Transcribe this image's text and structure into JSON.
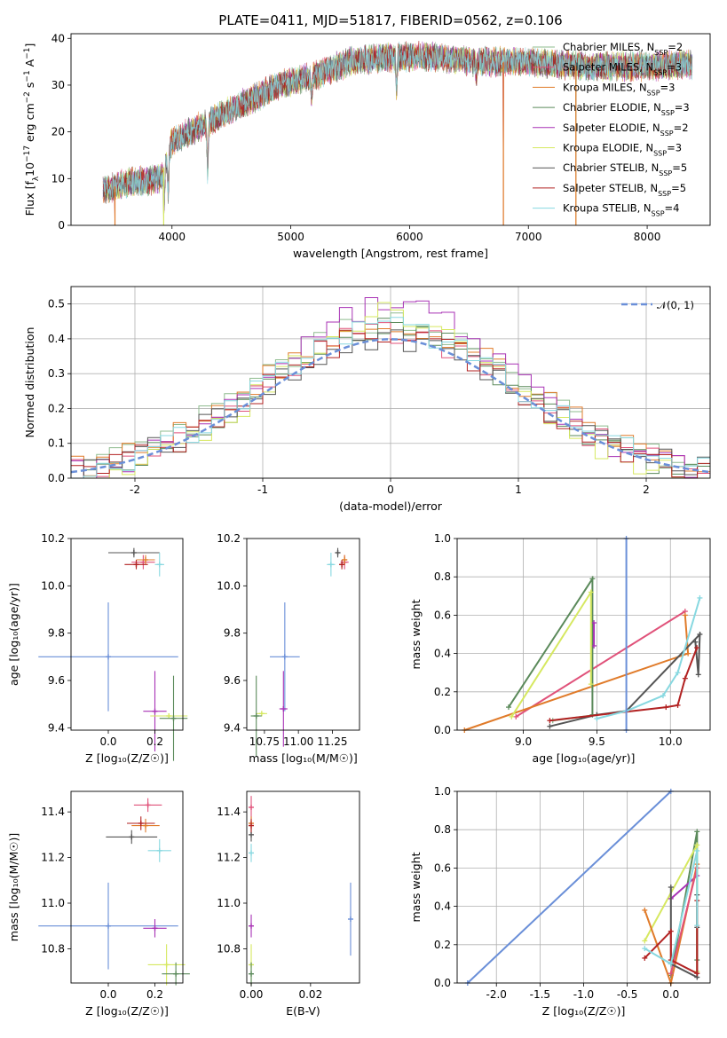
{
  "figure": {
    "title": "PLATE=0411, MJD=51817, FIBERID=0562, z=0.106"
  },
  "legend_spectrum": [
    {
      "label": "Chabrier MILES, N",
      "sub": "SSP",
      "suffix": "=2",
      "color": "#8fbc8f"
    },
    {
      "label": "Salpeter MILES, N",
      "sub": "SSP",
      "suffix": "=3",
      "color": "#e0527a"
    },
    {
      "label": "Kroupa MILES, N",
      "sub": "SSP",
      "suffix": "=3",
      "color": "#e07b2a"
    },
    {
      "label": "Chabrier ELODIE, N",
      "sub": "SSP",
      "suffix": "=3",
      "color": "#5b8a5b"
    },
    {
      "label": "Salpeter ELODIE, N",
      "sub": "SSP",
      "suffix": "=2",
      "color": "#a832b5"
    },
    {
      "label": "Kroupa ELODIE, N",
      "sub": "SSP",
      "suffix": "=3",
      "color": "#d6e860"
    },
    {
      "label": "Chabrier STELIB, N",
      "sub": "SSP",
      "suffix": "=5",
      "color": "#555555"
    },
    {
      "label": "Salpeter STELIB, N",
      "sub": "SSP",
      "suffix": "=5",
      "color": "#b22222"
    },
    {
      "label": "Kroupa STELIB, N",
      "sub": "SSP",
      "suffix": "=4",
      "color": "#87d8e0"
    }
  ],
  "chart_data": [
    {
      "type": "line",
      "id": "spectrum",
      "xlabel": "wavelength [Angstrom, rest frame]",
      "ylabel_parts": [
        "Flux [f",
        "λ",
        "10",
        "−17",
        " erg cm",
        "−2",
        " s",
        "−1",
        " A",
        "−1",
        "]"
      ],
      "xlim": [
        3150,
        8530
      ],
      "ylim": [
        0,
        41
      ],
      "xticks": [
        4000,
        5000,
        6000,
        7000,
        8000
      ],
      "yticks": [
        0,
        10,
        20,
        30,
        40
      ],
      "data_range": [
        3420,
        8380
      ],
      "continuum_points": [
        [
          3420,
          7.5
        ],
        [
          3600,
          9
        ],
        [
          3900,
          10
        ],
        [
          4000,
          18
        ],
        [
          4300,
          22
        ],
        [
          4600,
          26
        ],
        [
          4900,
          30
        ],
        [
          5200,
          32
        ],
        [
          5500,
          35
        ],
        [
          5800,
          36
        ],
        [
          6200,
          36
        ],
        [
          6600,
          35
        ],
        [
          7000,
          35
        ],
        [
          7500,
          34
        ],
        [
          8000,
          34
        ],
        [
          8380,
          34.5
        ]
      ],
      "absorption_dips": [
        [
          3934,
          8
        ],
        [
          3968,
          8
        ],
        [
          4300,
          10
        ],
        [
          5175,
          4
        ],
        [
          5890,
          6
        ],
        [
          6563,
          3
        ]
      ],
      "dropouts": [
        [
          3520,
          0
        ],
        [
          3930,
          0
        ],
        [
          6790,
          0
        ],
        [
          7400,
          0
        ]
      ]
    },
    {
      "type": "line",
      "id": "residuals",
      "xlabel": "(data-model)/error",
      "ylabel": "Normed distribution",
      "xlim": [
        -2.5,
        2.5
      ],
      "ylim": [
        0,
        0.55
      ],
      "xticks": [
        -2,
        -1,
        0,
        1,
        2
      ],
      "yticks": [
        0.0,
        0.1,
        0.2,
        0.3,
        0.4,
        0.5
      ],
      "legend": "𝒩(0, 1)",
      "legend_color": "#6a8fd8",
      "bin_width": 0.1,
      "series_peaks": [
        0.45,
        0.42,
        0.44,
        0.43,
        0.5,
        0.47,
        0.4,
        0.42,
        0.43
      ],
      "series_widths": [
        1.05,
        1.0,
        1.05,
        0.98,
        0.95,
        0.9,
        1.05,
        1.0,
        1.02
      ]
    },
    {
      "type": "scatter",
      "id": "age_vs_Z",
      "xlabel": "Z [log₁₀(Z/Z☉)]",
      "ylabel": "age  [log₁₀(age/yr)]",
      "xlim": [
        -0.16,
        0.32
      ],
      "ylim": [
        9.39,
        10.2
      ],
      "xticks": [
        0.0,
        0.2
      ],
      "yticks": [
        9.4,
        9.6,
        9.8,
        10.0,
        10.2
      ],
      "points": [
        {
          "x": 0.0,
          "y": 9.7,
          "ex": 0.3,
          "ey": 0.23,
          "color": "#6a8fd8"
        },
        {
          "x": 0.2,
          "y": 9.47,
          "ex": 0.05,
          "ey": 0.17,
          "color": "#a832b5"
        },
        {
          "x": 0.26,
          "y": 9.45,
          "ex": 0.08,
          "ey": 0.0,
          "color": "#d6e860"
        },
        {
          "x": 0.28,
          "y": 9.44,
          "ex": 0.06,
          "ey": 0.18,
          "color": "#5b8a5b"
        },
        {
          "x": 0.11,
          "y": 10.14,
          "ex": 0.11,
          "ey": 0.02,
          "color": "#555555"
        },
        {
          "x": 0.15,
          "y": 10.1,
          "ex": 0.05,
          "ey": 0.03,
          "color": "#e0527a"
        },
        {
          "x": 0.16,
          "y": 10.11,
          "ex": 0.04,
          "ey": 0.02,
          "color": "#e07b2a"
        },
        {
          "x": 0.12,
          "y": 10.09,
          "ex": 0.05,
          "ey": 0.02,
          "color": "#b22222"
        },
        {
          "x": 0.22,
          "y": 10.09,
          "ex": 0.02,
          "ey": 0.05,
          "color": "#87d8e0"
        }
      ]
    },
    {
      "type": "scatter",
      "id": "age_vs_mass",
      "xlabel": "mass [log₁₀(M/M☉)]",
      "ylabel": "",
      "xlim": [
        10.62,
        11.45
      ],
      "ylim": [
        9.39,
        10.2
      ],
      "xticks": [
        10.75,
        11.0,
        11.25
      ],
      "xtick_labels": [
        "10.75",
        "11.00",
        "11.25"
      ],
      "yticks": [
        9.4,
        9.6,
        9.8,
        10.0,
        10.2
      ],
      "points": [
        {
          "x": 10.9,
          "y": 9.7,
          "ex": 0.11,
          "ey": 0.23,
          "color": "#6a8fd8"
        },
        {
          "x": 10.89,
          "y": 9.48,
          "ex": 0.03,
          "ey": 0.16,
          "color": "#a832b5"
        },
        {
          "x": 10.73,
          "y": 9.46,
          "ex": 0.04,
          "ey": 0.0,
          "color": "#d6e860"
        },
        {
          "x": 10.69,
          "y": 9.45,
          "ex": 0.04,
          "ey": 0.17,
          "color": "#5b8a5b"
        },
        {
          "x": 11.29,
          "y": 10.14,
          "ex": 0.02,
          "ey": 0.02,
          "color": "#555555"
        },
        {
          "x": 11.34,
          "y": 10.1,
          "ex": 0.03,
          "ey": 0.03,
          "color": "#e0527a"
        },
        {
          "x": 11.34,
          "y": 10.11,
          "ex": 0.02,
          "ey": 0.02,
          "color": "#e07b2a"
        },
        {
          "x": 11.32,
          "y": 10.09,
          "ex": 0.02,
          "ey": 0.02,
          "color": "#b22222"
        },
        {
          "x": 11.24,
          "y": 10.09,
          "ex": 0.03,
          "ey": 0.05,
          "color": "#87d8e0"
        }
      ]
    },
    {
      "type": "line",
      "id": "mass_weight_vs_age",
      "xlabel": "age  [log₁₀(age/yr)]",
      "ylabel": "mass weight",
      "xlim": [
        8.55,
        10.27
      ],
      "ylim": [
        0,
        1.0
      ],
      "xticks": [
        9.0,
        9.5,
        10.0
      ],
      "yticks": [
        0.0,
        0.2,
        0.4,
        0.6,
        0.8,
        1.0
      ],
      "series": [
        {
          "name": "Chabrier MILES",
          "color": "#8fbc8f",
          "x": [
            9.2,
            9.5
          ],
          "y": [
            0.05,
            0.08
          ]
        },
        {
          "name": "Salpeter MILES",
          "color": "#e0527a",
          "x": [
            8.95,
            10.1
          ],
          "y": [
            0.07,
            0.62
          ]
        },
        {
          "name": "Kroupa MILES",
          "color": "#e07b2a",
          "x": [
            8.6,
            10.12,
            10.1
          ],
          "y": [
            0.0,
            0.4,
            0.6
          ]
        },
        {
          "name": "Chabrier ELODIE",
          "color": "#5b8a5b",
          "x": [
            8.9,
            9.47,
            9.47
          ],
          "y": [
            0.12,
            0.79,
            0.08
          ]
        },
        {
          "name": "Salpeter ELODIE",
          "color": "#a832b5",
          "x": [
            9.48,
            9.48
          ],
          "y": [
            0.56,
            0.44
          ]
        },
        {
          "name": "Kroupa ELODIE",
          "color": "#d6e860",
          "x": [
            8.92,
            9.46,
            9.46
          ],
          "y": [
            0.07,
            0.72,
            0.24
          ]
        },
        {
          "name": "Chabrier STELIB",
          "color": "#555555",
          "x": [
            9.18,
            9.5,
            9.7,
            10.2,
            10.19,
            10.17
          ],
          "y": [
            0.02,
            0.08,
            0.1,
            0.5,
            0.29,
            0.46
          ]
        },
        {
          "name": "Salpeter STELIB",
          "color": "#b22222",
          "x": [
            9.18,
            9.97,
            10.05,
            10.1,
            10.18
          ],
          "y": [
            0.05,
            0.12,
            0.13,
            0.27,
            0.43
          ]
        },
        {
          "name": "Kroupa STELIB",
          "color": "#87d8e0",
          "x": [
            9.5,
            9.7,
            9.95,
            10.05,
            10.2
          ],
          "y": [
            0.06,
            0.1,
            0.18,
            0.3,
            0.69
          ]
        },
        {
          "name": "blue",
          "color": "#6a8fd8",
          "x": [
            9.7,
            9.7
          ],
          "y": [
            0.0,
            1.0
          ]
        }
      ]
    },
    {
      "type": "scatter",
      "id": "mass_vs_Z",
      "xlabel": "Z [log₁₀(Z/Z☉)]",
      "ylabel": "mass [log₁₀(M/M☉)]",
      "xlim": [
        -0.16,
        0.32
      ],
      "ylim": [
        10.65,
        11.49
      ],
      "xticks": [
        0.0,
        0.2
      ],
      "yticks": [
        10.8,
        11.0,
        11.2,
        11.4
      ],
      "points": [
        {
          "x": 0.0,
          "y": 10.9,
          "ex": 0.3,
          "ey": 0.19,
          "color": "#6a8fd8"
        },
        {
          "x": 0.2,
          "y": 10.89,
          "ex": 0.05,
          "ey": 0.04,
          "color": "#a832b5"
        },
        {
          "x": 0.25,
          "y": 10.73,
          "ex": 0.08,
          "ey": 0.09,
          "color": "#d6e860"
        },
        {
          "x": 0.29,
          "y": 10.69,
          "ex": 0.06,
          "ey": 0.05,
          "color": "#5b8a5b"
        },
        {
          "x": 0.1,
          "y": 11.29,
          "ex": 0.11,
          "ey": 0.03,
          "color": "#555555"
        },
        {
          "x": 0.17,
          "y": 11.43,
          "ex": 0.06,
          "ey": 0.03,
          "color": "#e0527a"
        },
        {
          "x": 0.16,
          "y": 11.34,
          "ex": 0.06,
          "ey": 0.03,
          "color": "#e07b2a"
        },
        {
          "x": 0.14,
          "y": 11.35,
          "ex": 0.06,
          "ey": 0.03,
          "color": "#b22222"
        },
        {
          "x": 0.22,
          "y": 11.23,
          "ex": 0.05,
          "ey": 0.05,
          "color": "#87d8e0"
        }
      ]
    },
    {
      "type": "scatter",
      "id": "mass_vs_ebv",
      "xlabel": "E(B-V)",
      "ylabel": "",
      "xlim": [
        -0.0015,
        0.0365
      ],
      "ylim": [
        10.65,
        11.49
      ],
      "xticks": [
        0.0,
        0.02
      ],
      "xtick_labels": [
        "0.00",
        "0.02"
      ],
      "yticks": [
        10.8,
        11.0,
        11.2,
        11.4
      ],
      "points": [
        {
          "x": 0.0335,
          "y": 10.93,
          "ex": 0.0,
          "ey": 0.16,
          "color": "#6a8fd8"
        },
        {
          "x": 0.0,
          "y": 10.9,
          "ex": 0.0,
          "ey": 0.05,
          "color": "#a832b5"
        },
        {
          "x": 0.0,
          "y": 10.73,
          "ex": 0.0,
          "ey": 0.09,
          "color": "#d6e860"
        },
        {
          "x": 0.0,
          "y": 10.69,
          "ex": 0.0,
          "ey": 0.05,
          "color": "#5b8a5b"
        },
        {
          "x": 0.0,
          "y": 11.3,
          "ex": 0.0,
          "ey": 0.03,
          "color": "#555555"
        },
        {
          "x": 0.0,
          "y": 11.42,
          "ex": 0.0,
          "ey": 0.05,
          "color": "#e0527a"
        },
        {
          "x": 0.0,
          "y": 11.35,
          "ex": 0.0,
          "ey": 0.03,
          "color": "#e07b2a"
        },
        {
          "x": 0.0,
          "y": 11.34,
          "ex": 0.0,
          "ey": 0.03,
          "color": "#b22222"
        },
        {
          "x": 0.0,
          "y": 11.22,
          "ex": 0.0,
          "ey": 0.04,
          "color": "#87d8e0"
        }
      ]
    },
    {
      "type": "line",
      "id": "mass_weight_vs_Z",
      "xlabel": "Z [log₁₀(Z/Z☉)]",
      "ylabel": "mass weight",
      "xlim": [
        -2.45,
        0.45
      ],
      "ylim": [
        0,
        1.0
      ],
      "xticks": [
        -2.0,
        -1.5,
        -1.0,
        -0.5,
        0.0
      ],
      "yticks": [
        0.0,
        0.2,
        0.4,
        0.6,
        0.8,
        1.0
      ],
      "series": [
        {
          "name": "blue",
          "color": "#6a8fd8",
          "x": [
            -2.33,
            0.0
          ],
          "y": [
            0.0,
            1.0
          ]
        },
        {
          "name": "Chabrier ELODIE",
          "color": "#5b8a5b",
          "x": [
            0.0,
            0.3,
            0.3
          ],
          "y": [
            0.04,
            0.79,
            0.12
          ]
        },
        {
          "name": "Kroupa ELODIE",
          "color": "#d6e860",
          "x": [
            -0.3,
            0.3,
            0.3
          ],
          "y": [
            0.22,
            0.72,
            0.06
          ]
        },
        {
          "name": "Salpeter ELODIE",
          "color": "#a832b5",
          "x": [
            0.0,
            0.3
          ],
          "y": [
            0.44,
            0.56
          ]
        },
        {
          "name": "Kroupa MILES",
          "color": "#e07b2a",
          "x": [
            -0.3,
            0.0,
            0.3
          ],
          "y": [
            0.38,
            0.0,
            0.62
          ]
        },
        {
          "name": "Salpeter MILES",
          "color": "#e0527a",
          "x": [
            0.0,
            0.3
          ],
          "y": [
            0.05,
            0.6
          ]
        },
        {
          "name": "Chabrier STELIB",
          "color": "#555555",
          "x": [
            0.0,
            0.0,
            0.3,
            0.3,
            0.3
          ],
          "y": [
            0.5,
            0.1,
            0.03,
            0.29,
            0.46
          ]
        },
        {
          "name": "Salpeter STELIB",
          "color": "#b22222",
          "x": [
            -0.3,
            0.0,
            0.0,
            0.3,
            0.3
          ],
          "y": [
            0.13,
            0.27,
            0.12,
            0.05,
            0.43
          ]
        },
        {
          "name": "Kroupa STELIB",
          "color": "#87d8e0",
          "x": [
            -0.3,
            0.0,
            0.3,
            0.3
          ],
          "y": [
            0.18,
            0.1,
            0.69,
            0.3
          ]
        }
      ]
    }
  ]
}
